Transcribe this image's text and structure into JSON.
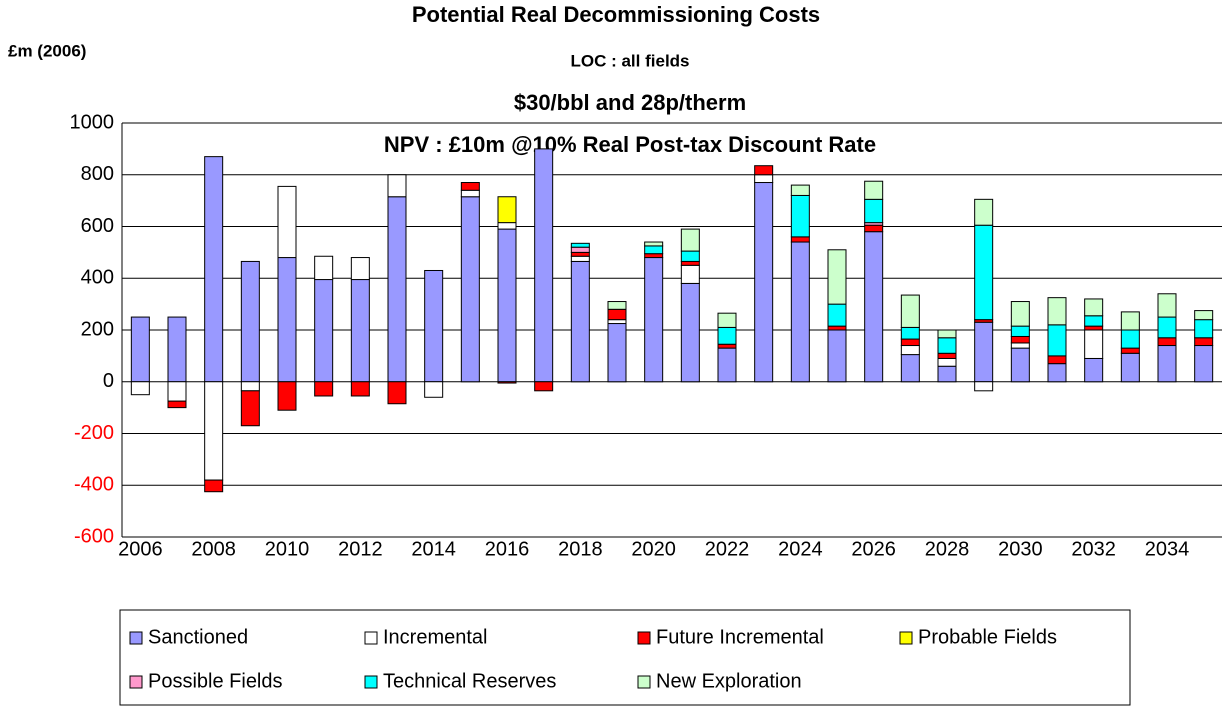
{
  "chart_data": {
    "type": "stacked_bar",
    "title": "Potential Real Decommissioning Costs",
    "subtitle": "LOC : all fields",
    "annotations": [
      "$30/bbl and 28p/therm",
      "NPV : £10m @10% Real Post-tax Discount Rate"
    ],
    "y_label": "£m (2006)",
    "categories": [
      "2006",
      null,
      "2008",
      null,
      "2010",
      null,
      "2012",
      null,
      "2014",
      null,
      "2016",
      null,
      "2018",
      null,
      "2020",
      null,
      "2022",
      null,
      "2024",
      null,
      "2026",
      null,
      "2028",
      null,
      "2030",
      null,
      "2032",
      null,
      "2034",
      null
    ],
    "series": [
      {
        "name": "Sanctioned",
        "color": "#9999ff",
        "values": [
          250,
          250,
          870,
          465,
          480,
          395,
          395,
          715,
          430,
          715,
          590,
          900,
          465,
          225,
          480,
          380,
          130,
          770,
          540,
          200,
          580,
          105,
          60,
          230,
          130,
          70,
          90,
          110,
          140,
          140
        ]
      },
      {
        "name": "Incremental",
        "color": "#ffffff",
        "values": [
          -50,
          -75,
          -380,
          -35,
          275,
          90,
          85,
          85,
          -60,
          25,
          25,
          0,
          20,
          15,
          0,
          70,
          0,
          30,
          0,
          0,
          0,
          35,
          30,
          -35,
          20,
          0,
          110,
          0,
          0,
          0
        ]
      },
      {
        "name": "Future Incremental",
        "color": "#ff0000",
        "values": [
          0,
          -25,
          -45,
          -135,
          -110,
          -55,
          -55,
          -85,
          0,
          30,
          -5,
          -35,
          15,
          40,
          15,
          15,
          15,
          35,
          20,
          15,
          25,
          25,
          20,
          10,
          25,
          30,
          15,
          20,
          30,
          30
        ]
      },
      {
        "name": "Probable Fields",
        "color": "#ffff00",
        "values": [
          0,
          0,
          0,
          0,
          0,
          0,
          0,
          0,
          0,
          0,
          100,
          0,
          0,
          0,
          0,
          0,
          0,
          0,
          0,
          0,
          0,
          0,
          0,
          0,
          0,
          0,
          0,
          0,
          0,
          0
        ]
      },
      {
        "name": "Possible Fields",
        "color": "#ff99cc",
        "values": [
          0,
          0,
          0,
          0,
          0,
          0,
          0,
          0,
          0,
          0,
          0,
          0,
          20,
          0,
          0,
          0,
          0,
          0,
          0,
          0,
          10,
          0,
          0,
          0,
          0,
          0,
          0,
          0,
          0,
          0
        ]
      },
      {
        "name": "Technical Reserves",
        "color": "#00ffff",
        "values": [
          0,
          0,
          0,
          0,
          0,
          0,
          0,
          0,
          0,
          0,
          0,
          0,
          15,
          0,
          30,
          40,
          65,
          0,
          160,
          85,
          90,
          45,
          60,
          365,
          40,
          120,
          40,
          70,
          80,
          70
        ]
      },
      {
        "name": "New Exploration",
        "color": "#ccffcc",
        "values": [
          0,
          0,
          0,
          0,
          0,
          0,
          0,
          0,
          0,
          0,
          0,
          0,
          0,
          30,
          15,
          85,
          55,
          0,
          40,
          210,
          70,
          125,
          30,
          100,
          95,
          105,
          65,
          70,
          90,
          35
        ]
      }
    ],
    "ylim": [
      -600,
      1000
    ],
    "yticks": [
      -600,
      -400,
      -200,
      0,
      200,
      400,
      600,
      800,
      1000
    ],
    "grid": true,
    "negative_tick_color": "#ff0000",
    "legend": "bottom"
  }
}
